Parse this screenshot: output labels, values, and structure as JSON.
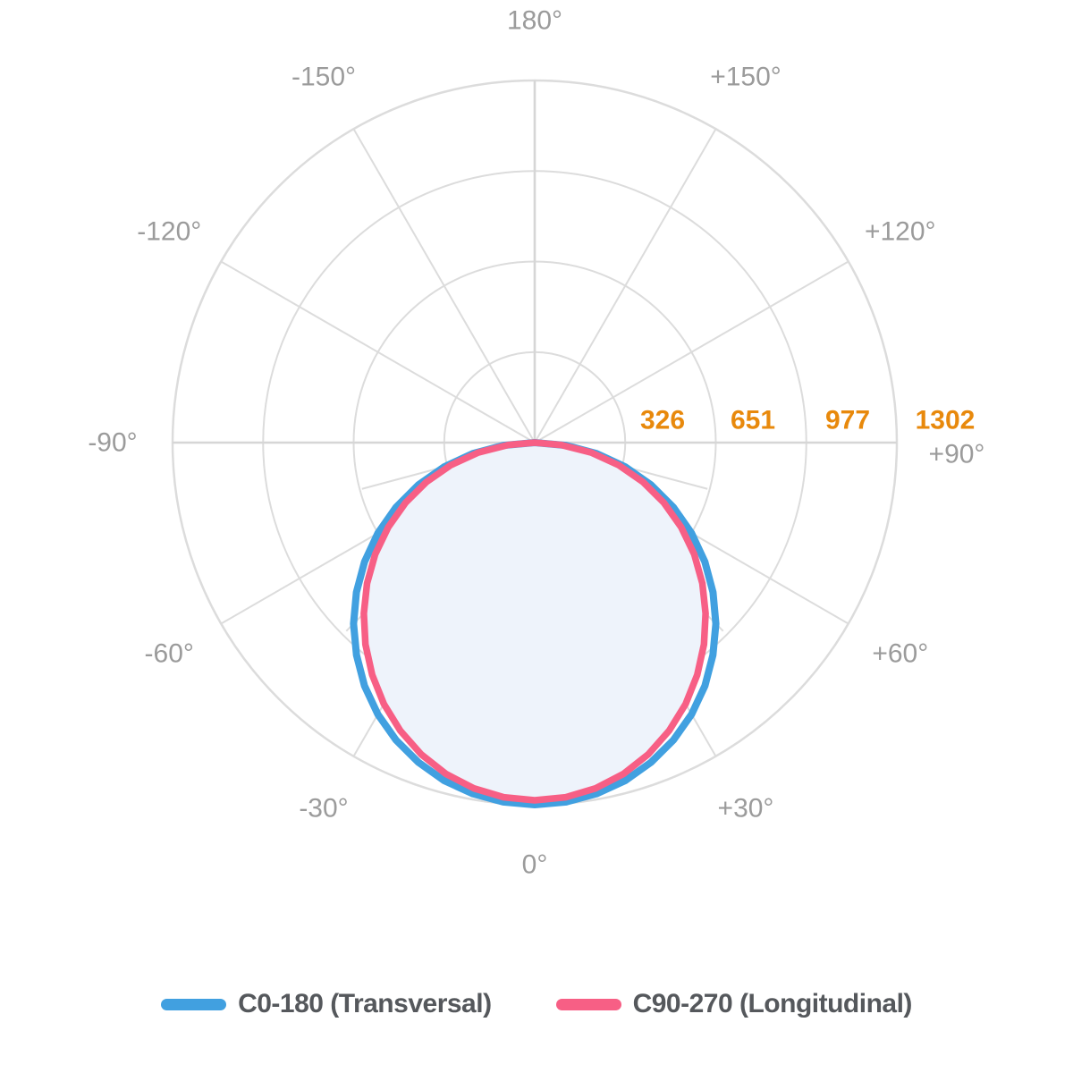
{
  "chart_data": {
    "type": "line",
    "subtype": "polar-photometric-distribution",
    "orientation": "0-degrees-at-bottom",
    "radial_axis": {
      "max": 1302,
      "tick_values": [
        326,
        651,
        977,
        1302
      ],
      "tick_color": "#e8890c"
    },
    "angle_labels": [
      {
        "angle": 180,
        "label": "180°"
      },
      {
        "angle": -150,
        "label": "-150°"
      },
      {
        "angle": 150,
        "label": "+150°"
      },
      {
        "angle": -120,
        "label": "-120°"
      },
      {
        "angle": 120,
        "label": "+120°"
      },
      {
        "angle": -90,
        "label": "-90°"
      },
      {
        "angle": 90,
        "label": "+90°"
      },
      {
        "angle": -60,
        "label": "-60°"
      },
      {
        "angle": 60,
        "label": "+60°"
      },
      {
        "angle": -30,
        "label": "-30°"
      },
      {
        "angle": 30,
        "label": "+30°"
      },
      {
        "angle": 0,
        "label": "0°"
      }
    ],
    "angles_deg": [
      -90,
      -85,
      -80,
      -75,
      -70,
      -65,
      -60,
      -55,
      -50,
      -45,
      -40,
      -35,
      -30,
      -25,
      -20,
      -15,
      -10,
      -5,
      0,
      5,
      10,
      15,
      20,
      25,
      30,
      35,
      40,
      45,
      50,
      55,
      60,
      65,
      70,
      75,
      80,
      85,
      90
    ],
    "series": [
      {
        "name": "C0-180 (Transversal)",
        "color": "#41a0e0",
        "line_width": 8,
        "values": [
          0,
          113,
          226,
          337,
          445,
          550,
          651,
          747,
          837,
          921,
          997,
          1067,
          1128,
          1180,
          1223,
          1258,
          1282,
          1297,
          1302,
          1297,
          1282,
          1258,
          1223,
          1180,
          1128,
          1067,
          997,
          921,
          837,
          747,
          651,
          550,
          445,
          337,
          226,
          113,
          0
        ]
      },
      {
        "name": "C90-270 (Longitudinal)",
        "color": "#f75f85",
        "line_width": 7.5,
        "fill": "#eef3fb",
        "values": [
          0,
          96,
          206,
          312,
          415,
          513,
          608,
          700,
          787,
          869,
          947,
          1019,
          1085,
          1143,
          1193,
          1233,
          1262,
          1280,
          1286,
          1280,
          1262,
          1233,
          1193,
          1143,
          1085,
          1019,
          947,
          869,
          787,
          700,
          608,
          513,
          415,
          312,
          206,
          96,
          0
        ]
      }
    ],
    "grid": {
      "ring_count": 4,
      "major_spoke_step_deg": 30,
      "minor_spokes_lower_half_deg": [
        15,
        45,
        75
      ],
      "color": "#dcdcdc",
      "axis_color": "#d6d6d6"
    },
    "angle_label_color": "#9b9b9b",
    "legend_position": "bottom"
  }
}
